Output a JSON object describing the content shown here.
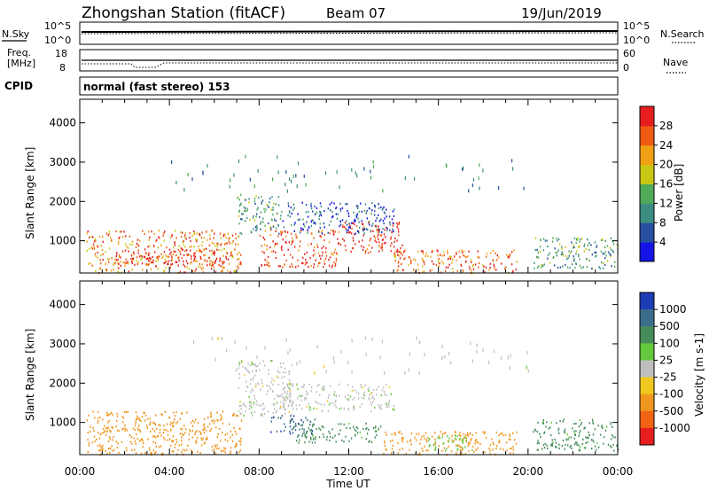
{
  "header": {
    "station": "Zhongshan Station (fitACF)",
    "beam": "Beam 07",
    "date": "19/Jun/2019"
  },
  "noise_panel": {
    "left_label": "N.Sky",
    "right_label": "N.Search",
    "left_ticks": [
      "10^5",
      "10^0"
    ],
    "right_ticks": [
      "10^5",
      "10^0"
    ]
  },
  "freq_panel": {
    "left_label_line1": "Freq.",
    "left_label_line2": "[MHz]",
    "right_label": "Nave",
    "left_ticks": [
      "18",
      "8"
    ],
    "right_ticks": [
      "60",
      "0"
    ]
  },
  "cpid_panel": {
    "label": "CPID",
    "text": "normal (fast stereo) 153"
  },
  "axes": {
    "x_label": "Time UT",
    "x_ticks": [
      "00:00",
      "04:00",
      "08:00",
      "12:00",
      "16:00",
      "20:00",
      "00:00"
    ],
    "y_label": "Slant Range [km]",
    "y_ticks": [
      "1000",
      "2000",
      "3000",
      "4000"
    ]
  },
  "power_colorbar": {
    "label": "Power [dB]",
    "ticks": [
      "4",
      "8",
      "12",
      "16",
      "20",
      "24",
      "28"
    ],
    "colors": [
      "#1414e6",
      "#2850a0",
      "#3c8c82",
      "#50aa5a",
      "#c8c814",
      "#f0a014",
      "#f05a14",
      "#e61e1e"
    ]
  },
  "velocity_colorbar": {
    "label": "Velocity [m s-1]",
    "ticks": [
      "1000",
      "500",
      "100",
      "25",
      "-25",
      "-100",
      "-500",
      "-1000"
    ],
    "colors": [
      "#1e3cb4",
      "#3c6e8c",
      "#468c5a",
      "#64c83c",
      "#bebebe",
      "#f0c81e",
      "#f0961e",
      "#f06414",
      "#e61e1e"
    ]
  },
  "chart_data": [
    {
      "type": "heatmap",
      "title": "Power",
      "x": [
        "00:00",
        "04:00",
        "08:00",
        "12:00",
        "16:00",
        "20:00",
        "00:00"
      ],
      "xlim_hours": [
        0,
        24
      ],
      "ylim_km": [
        180,
        4600
      ],
      "colorbar_label": "Power [dB]",
      "colorbar_range_db": [
        0,
        32
      ],
      "regions": [
        {
          "t_start": 0.3,
          "t_end": 7.2,
          "range_km": [
            200,
            1300
          ],
          "level": 24
        },
        {
          "t_start": 1.5,
          "t_end": 6.8,
          "range_km": [
            400,
            800
          ],
          "level": 30
        },
        {
          "t_start": 7.0,
          "t_end": 9.0,
          "range_km": [
            1200,
            2200
          ],
          "level": 12
        },
        {
          "t_start": 8.0,
          "t_end": 11.5,
          "range_km": [
            350,
            1300
          ],
          "level": 28
        },
        {
          "t_start": 11.5,
          "t_end": 14.5,
          "range_km": [
            700,
            1500
          ],
          "level": 30
        },
        {
          "t_start": 14.0,
          "t_end": 19.5,
          "range_km": [
            200,
            800
          ],
          "level": 26
        },
        {
          "t_start": 20.2,
          "t_end": 24.0,
          "range_km": [
            300,
            1100
          ],
          "level": 12
        },
        {
          "t_start": 9.0,
          "t_end": 14.0,
          "range_km": [
            1200,
            2000
          ],
          "level": 6
        }
      ]
    },
    {
      "type": "heatmap",
      "title": "Velocity",
      "x": [
        "00:00",
        "04:00",
        "08:00",
        "12:00",
        "16:00",
        "20:00",
        "00:00"
      ],
      "xlim_hours": [
        0,
        24
      ],
      "ylim_km": [
        180,
        4600
      ],
      "colorbar_label": "Velocity [m s-1]",
      "colorbar_range": [
        -1000,
        1000
      ],
      "regions": [
        {
          "t_start": 0.3,
          "t_end": 7.2,
          "range_km": [
            200,
            1300
          ],
          "level": -200
        },
        {
          "t_start": 7.0,
          "t_end": 9.5,
          "range_km": [
            1200,
            2600
          ],
          "level": 0
        },
        {
          "t_start": 8.5,
          "t_end": 10.5,
          "range_km": [
            700,
            1200
          ],
          "level": 800
        },
        {
          "t_start": 9.5,
          "t_end": 13.5,
          "range_km": [
            500,
            1000
          ],
          "level": 150
        },
        {
          "t_start": 13.5,
          "t_end": 19.5,
          "range_km": [
            200,
            800
          ],
          "level": -200
        },
        {
          "t_start": 15.5,
          "t_end": 17.5,
          "range_km": [
            300,
            700
          ],
          "level": 70
        },
        {
          "t_start": 20.2,
          "t_end": 24.0,
          "range_km": [
            300,
            1100
          ],
          "level": 150
        },
        {
          "t_start": 9.0,
          "t_end": 14.0,
          "range_km": [
            1300,
            2000
          ],
          "level": 0
        }
      ]
    }
  ]
}
